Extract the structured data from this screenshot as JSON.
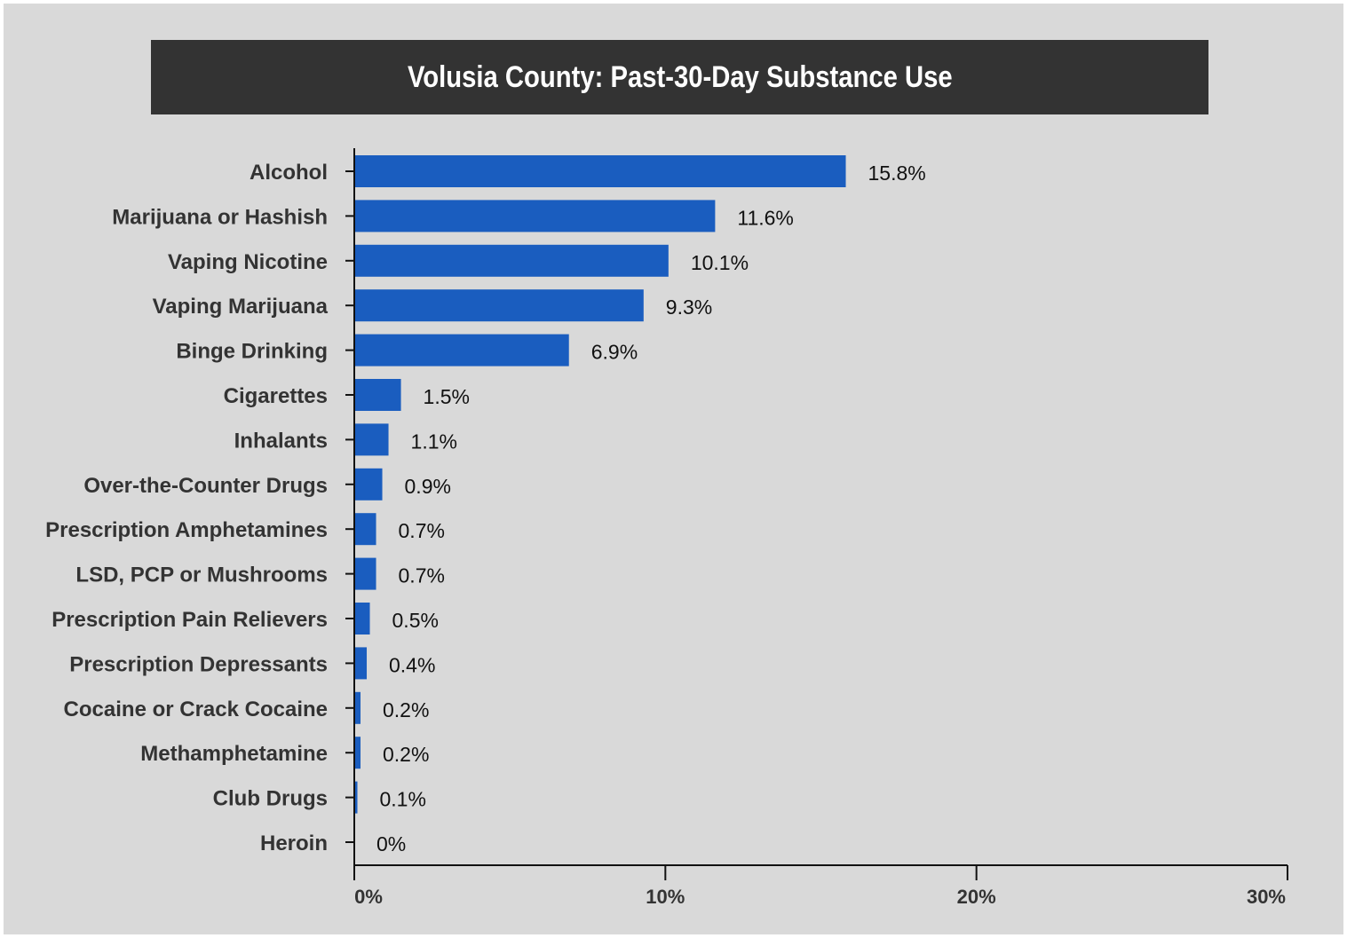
{
  "chart_data": {
    "type": "bar",
    "orientation": "horizontal",
    "title": "Volusia County: Past-30-Day Substance Use",
    "categories": [
      "Alcohol",
      "Marijuana or Hashish",
      "Vaping Nicotine",
      "Vaping Marijuana",
      "Binge Drinking",
      "Cigarettes",
      "Inhalants",
      "Over-the-Counter Drugs",
      "Prescription Amphetamines",
      "LSD, PCP or Mushrooms",
      "Prescription Pain Relievers",
      "Prescription Depressants",
      "Cocaine or Crack Cocaine",
      "Methamphetamine",
      "Club Drugs",
      "Heroin"
    ],
    "values": [
      15.8,
      11.6,
      10.1,
      9.3,
      6.9,
      1.5,
      1.1,
      0.9,
      0.7,
      0.7,
      0.5,
      0.4,
      0.2,
      0.2,
      0.1,
      0
    ],
    "value_labels": [
      "15.8%",
      "11.6%",
      "10.1%",
      "9.3%",
      "6.9%",
      "1.5%",
      "1.1%",
      "0.9%",
      "0.7%",
      "0.7%",
      "0.5%",
      "0.4%",
      "0.2%",
      "0.2%",
      "0.1%",
      "0%"
    ],
    "x_ticks": [
      0,
      10,
      20,
      30
    ],
    "x_tick_labels": [
      "0%",
      "10%",
      "20%",
      "30%"
    ],
    "xlim": [
      0,
      30
    ],
    "xlabel": "",
    "ylabel": "",
    "grid": false,
    "legend": "none",
    "bar_color": "#1a5dbf",
    "background_color": "#d9d9d9",
    "title_background": "#333333"
  }
}
